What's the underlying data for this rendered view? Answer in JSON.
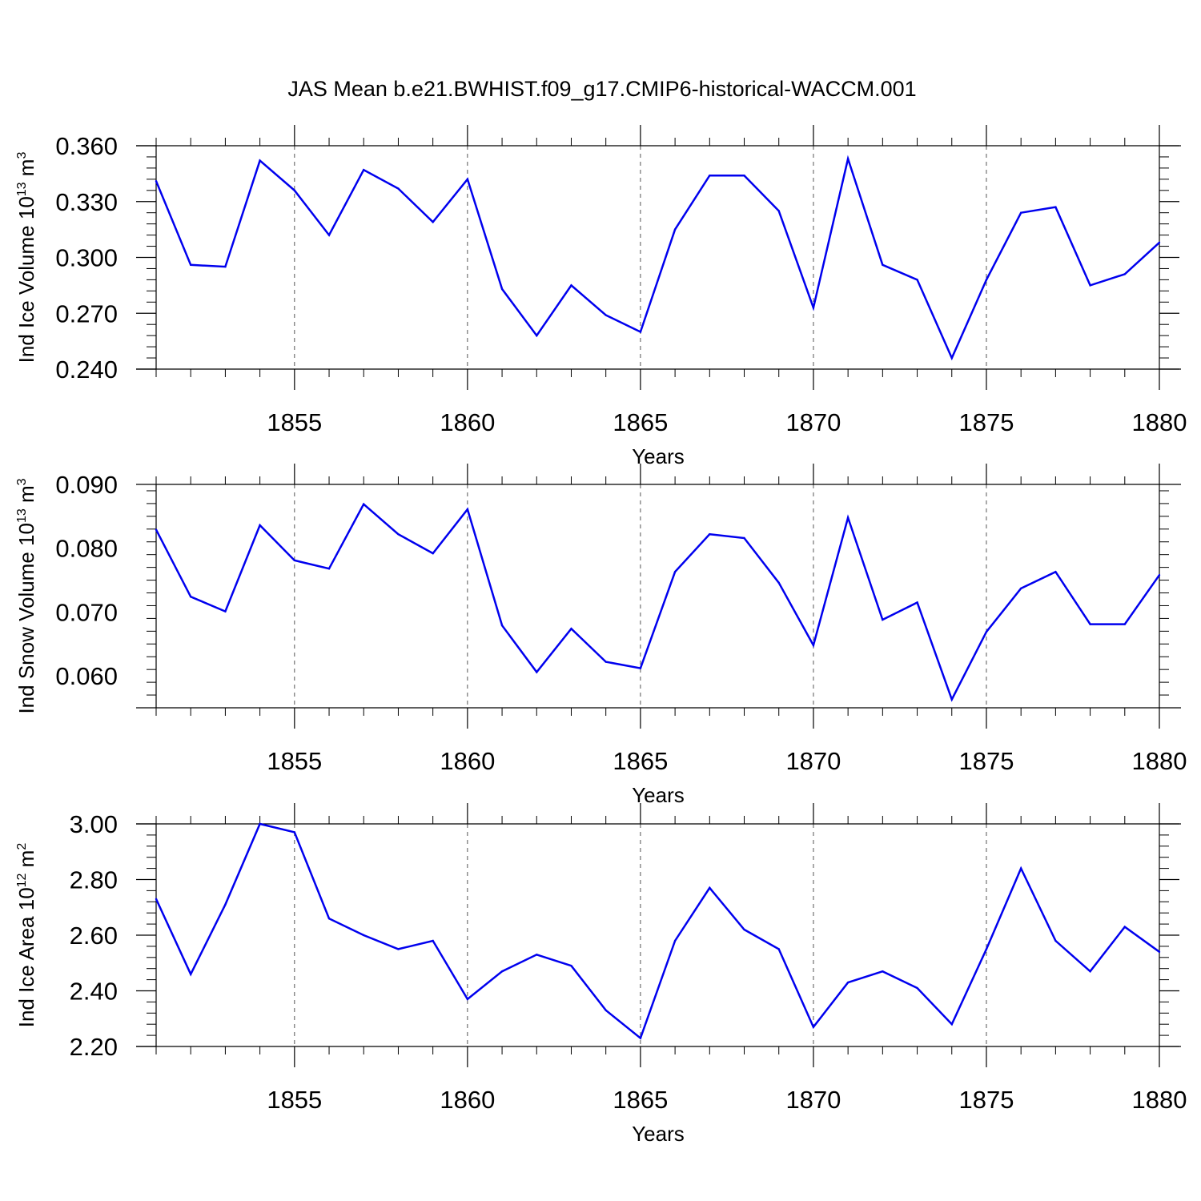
{
  "title": "JAS Mean b.e21.BWHIST.f09_g17.CMIP6-historical-WACCM.001",
  "colors": {
    "series": "#0000ee",
    "axis": "#000000",
    "grid": "#555555"
  },
  "chart_data": [
    {
      "type": "line",
      "ylabel": {
        "text": "Ind Ice Volume 10",
        "sup": "13",
        "unit": " m",
        "unit_sup": "3"
      },
      "xlabel": "Years",
      "xlim": [
        1851,
        1880
      ],
      "ylim": [
        0.24,
        0.36
      ],
      "yticks": [
        0.24,
        0.27,
        0.3,
        0.33,
        0.36
      ],
      "ytick_labels": [
        "0.240",
        "0.270",
        "0.300",
        "0.330",
        "0.360"
      ],
      "xticks": [
        1855,
        1860,
        1865,
        1870,
        1875,
        1880
      ],
      "xtick_labels": [
        "1855",
        "1860",
        "1865",
        "1870",
        "1875",
        "1880"
      ],
      "grid": "vertical-dashed",
      "x": [
        1851,
        1852,
        1853,
        1854,
        1855,
        1856,
        1857,
        1858,
        1859,
        1860,
        1861,
        1862,
        1863,
        1864,
        1865,
        1866,
        1867,
        1868,
        1869,
        1870,
        1871,
        1872,
        1873,
        1874,
        1875,
        1876,
        1877,
        1878,
        1879,
        1880
      ],
      "y": [
        0.341,
        0.296,
        0.295,
        0.352,
        0.336,
        0.312,
        0.347,
        0.337,
        0.319,
        0.342,
        0.283,
        0.258,
        0.285,
        0.269,
        0.26,
        0.315,
        0.344,
        0.344,
        0.325,
        0.273,
        0.353,
        0.296,
        0.288,
        0.246,
        0.288,
        0.324,
        0.327,
        0.285,
        0.291,
        0.308
      ]
    },
    {
      "type": "line",
      "ylabel": {
        "text": "Ind Snow Volume 10",
        "sup": "13",
        "unit": " m",
        "unit_sup": "3"
      },
      "xlabel": "Years",
      "xlim": [
        1851,
        1880
      ],
      "ylim": [
        0.055,
        0.09
      ],
      "yticks": [
        0.06,
        0.07,
        0.08,
        0.09
      ],
      "ytick_labels": [
        "0.060",
        "0.070",
        "0.080",
        "0.090"
      ],
      "xticks": [
        1855,
        1860,
        1865,
        1870,
        1875,
        1880
      ],
      "xtick_labels": [
        "1855",
        "1860",
        "1865",
        "1870",
        "1875",
        "1880"
      ],
      "grid": "vertical-dashed",
      "x": [
        1851,
        1852,
        1853,
        1854,
        1855,
        1856,
        1857,
        1858,
        1859,
        1860,
        1861,
        1862,
        1863,
        1864,
        1865,
        1866,
        1867,
        1868,
        1869,
        1870,
        1871,
        1872,
        1873,
        1874,
        1875,
        1876,
        1877,
        1878,
        1879,
        1880
      ],
      "y": [
        0.0829,
        0.0724,
        0.0701,
        0.0836,
        0.0781,
        0.0768,
        0.0869,
        0.0822,
        0.0792,
        0.0861,
        0.0679,
        0.0606,
        0.0674,
        0.0622,
        0.0612,
        0.0763,
        0.0822,
        0.0816,
        0.0746,
        0.0648,
        0.0848,
        0.0688,
        0.0715,
        0.0563,
        0.0669,
        0.0737,
        0.0763,
        0.0681,
        0.0681,
        0.0758
      ]
    },
    {
      "type": "line",
      "ylabel": {
        "text": "Ind Ice Area 10",
        "sup": "12",
        "unit": " m",
        "unit_sup": "2"
      },
      "xlabel": "Years",
      "xlim": [
        1851,
        1880
      ],
      "ylim": [
        2.2,
        3.0
      ],
      "yticks": [
        2.2,
        2.4,
        2.6,
        2.8,
        3.0
      ],
      "ytick_labels": [
        "2.20",
        "2.40",
        "2.60",
        "2.80",
        "3.00"
      ],
      "xticks": [
        1855,
        1860,
        1865,
        1870,
        1875,
        1880
      ],
      "xtick_labels": [
        "1855",
        "1860",
        "1865",
        "1870",
        "1875",
        "1880"
      ],
      "grid": "vertical-dashed",
      "x": [
        1851,
        1852,
        1853,
        1854,
        1855,
        1856,
        1857,
        1858,
        1859,
        1860,
        1861,
        1862,
        1863,
        1864,
        1865,
        1866,
        1867,
        1868,
        1869,
        1870,
        1871,
        1872,
        1873,
        1874,
        1875,
        1876,
        1877,
        1878,
        1879,
        1880
      ],
      "y": [
        2.73,
        2.46,
        2.71,
        3.0,
        2.97,
        2.66,
        2.6,
        2.55,
        2.58,
        2.37,
        2.47,
        2.53,
        2.49,
        2.33,
        2.23,
        2.58,
        2.77,
        2.62,
        2.55,
        2.27,
        2.43,
        2.47,
        2.41,
        2.28,
        2.55,
        2.84,
        2.58,
        2.47,
        2.63,
        2.54
      ]
    }
  ]
}
